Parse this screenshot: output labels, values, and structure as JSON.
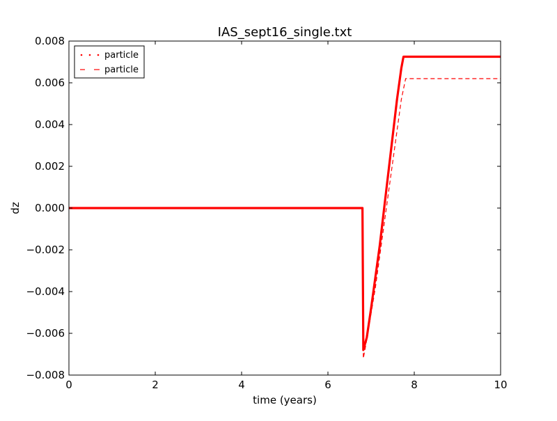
{
  "chart_data": {
    "type": "line",
    "title": "IAS_sept16_single.txt",
    "xlabel": "time (years)",
    "ylabel": "dz",
    "xlim": [
      0,
      10
    ],
    "ylim": [
      -0.008,
      0.008
    ],
    "x_ticks": [
      0,
      2,
      4,
      6,
      8,
      10
    ],
    "x_tick_labels": [
      "0",
      "2",
      "4",
      "6",
      "8",
      "10"
    ],
    "y_ticks": [
      -0.008,
      -0.006,
      -0.004,
      -0.002,
      0.0,
      0.002,
      0.004,
      0.006,
      0.008
    ],
    "y_tick_labels": [
      "−0.008",
      "−0.006",
      "−0.004",
      "−0.002",
      "0.000",
      "0.002",
      "0.004",
      "0.006",
      "0.008"
    ],
    "grid": false,
    "legend_position": "top-left",
    "series": [
      {
        "name": "particle",
        "style": "dotted",
        "color": "#ff0000",
        "x": [
          0,
          6.8,
          6.82,
          6.9,
          7.0,
          7.2,
          7.4,
          7.6,
          7.7,
          7.75,
          8.0,
          10
        ],
        "y": [
          0.0,
          0.0,
          -0.0068,
          -0.0062,
          -0.0048,
          -0.0018,
          0.0017,
          0.0052,
          0.0067,
          0.00725,
          0.00725,
          0.00725
        ]
      },
      {
        "name": "particle",
        "style": "dashed",
        "color": "#ff0000",
        "x": [
          0,
          6.8,
          6.8,
          6.82,
          6.9,
          7.1,
          7.3,
          7.5,
          7.7,
          7.8,
          8.5,
          10
        ],
        "y": [
          0.0,
          0.0,
          -0.001,
          -0.0072,
          -0.0063,
          -0.0038,
          -0.0008,
          0.0022,
          0.0052,
          0.0062,
          0.0062,
          0.0062
        ]
      }
    ]
  }
}
